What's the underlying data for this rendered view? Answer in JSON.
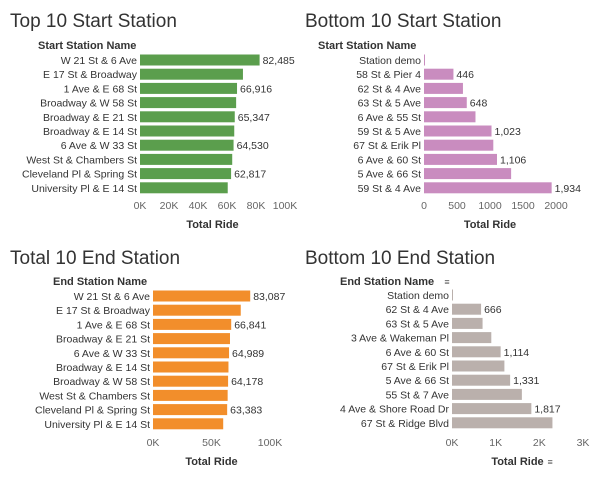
{
  "colors": {
    "green": "#5b9e4d",
    "pink": "#c98cbf",
    "orange": "#f28e2b",
    "gray": "#bab0ac",
    "text": "#333333",
    "axis": "#666666"
  },
  "chart_data": [
    {
      "type": "bar",
      "orientation": "horizontal",
      "title": "Top 10 Start Station",
      "category_header": "Start Station Name",
      "xlabel": "Total Ride",
      "categories": [
        "W 21 St & 6 Ave",
        "E 17 St & Broadway",
        "1 Ave & E 68 St",
        "Broadway & W 58 St",
        "Broadway & E 21 St",
        "Broadway & E 14 St",
        "6 Ave & W 33 St",
        "West St & Chambers St",
        "Cleveland Pl & Spring St",
        "University Pl & E 14 St"
      ],
      "values": [
        82485,
        71000,
        66916,
        66300,
        65347,
        65000,
        64530,
        63600,
        62817,
        60500
      ],
      "labels": [
        "82,485",
        "",
        "66,916",
        "",
        "65,347",
        "",
        "64,530",
        "",
        "62,817",
        ""
      ],
      "xticks": [
        0,
        20000,
        40000,
        60000,
        80000,
        100000
      ],
      "xtick_labels": [
        "0K",
        "20K",
        "40K",
        "60K",
        "80K",
        "100K"
      ],
      "xlim": [
        0,
        100000
      ],
      "grid": false,
      "color": "green"
    },
    {
      "type": "bar",
      "orientation": "horizontal",
      "title": "Bottom 10 Start Station",
      "category_header": "Start Station Name",
      "xlabel": "Total Ride",
      "categories": [
        "Station demo",
        "58 St & Pier 4",
        "62 St & 4 Ave",
        "63 St & 5 Ave",
        "6 Ave & 55 St",
        "59 St & 5 Ave",
        "67 St & Erik Pl",
        "6 Ave & 60 St",
        "5 Ave & 66 St",
        "59 St & 4 Ave"
      ],
      "values": [
        8,
        446,
        590,
        648,
        780,
        1023,
        1050,
        1106,
        1320,
        1934
      ],
      "labels": [
        "",
        "446",
        "",
        "648",
        "",
        "1,023",
        "",
        "1,106",
        "",
        "1,934"
      ],
      "xticks": [
        0,
        500,
        1000,
        1500,
        2000
      ],
      "xtick_labels": [
        "0",
        "500",
        "1000",
        "1500",
        "2000"
      ],
      "xlim": [
        0,
        2000
      ],
      "grid": false,
      "color": "pink"
    },
    {
      "type": "bar",
      "orientation": "horizontal",
      "title": "Total 10 End Station",
      "category_header": "End Station Name",
      "xlabel": "Total Ride",
      "categories": [
        "W 21 St & 6 Ave",
        "E 17 St & Broadway",
        "1 Ave & E 68 St",
        "Broadway & E 21 St",
        "6 Ave & W 33 St",
        "Broadway & E 14 St",
        "Broadway & W 58 St",
        "West St & Chambers St",
        "Cleveland Pl & Spring St",
        "University Pl & E 14 St"
      ],
      "values": [
        83087,
        75000,
        66841,
        65800,
        64989,
        64500,
        64178,
        63800,
        63383,
        60000
      ],
      "labels": [
        "83,087",
        "",
        "66,841",
        "",
        "64,989",
        "",
        "64,178",
        "",
        "63,383",
        ""
      ],
      "xticks": [
        0,
        50000,
        100000
      ],
      "xtick_labels": [
        "0K",
        "50K",
        "100K"
      ],
      "xlim": [
        0,
        100000
      ],
      "grid": false,
      "color": "orange"
    },
    {
      "type": "bar",
      "orientation": "horizontal",
      "title": "Bottom 10 End Station",
      "category_header": "End Station Name",
      "xlabel": "Total Ride",
      "categories": [
        "Station demo",
        "62 St & 4 Ave",
        "63 St & 5 Ave",
        "3 Ave & Wakeman Pl",
        "6 Ave & 60 St",
        "67 St & Erik Pl",
        "5 Ave & 66 St",
        "55 St & 7 Ave",
        "4 Ave & Shore Road Dr",
        "67 St & Ridge Blvd"
      ],
      "values": [
        10,
        666,
        700,
        900,
        1114,
        1200,
        1331,
        1600,
        1817,
        2300
      ],
      "labels": [
        "",
        "666",
        "",
        "",
        "1,114",
        "",
        "1,331",
        "",
        "1,817",
        ""
      ],
      "xticks": [
        0,
        1000,
        2000,
        3000
      ],
      "xtick_labels": [
        "0K",
        "1K",
        "2K",
        "3K"
      ],
      "xlim": [
        0,
        3000
      ],
      "grid": false,
      "color": "gray"
    }
  ]
}
